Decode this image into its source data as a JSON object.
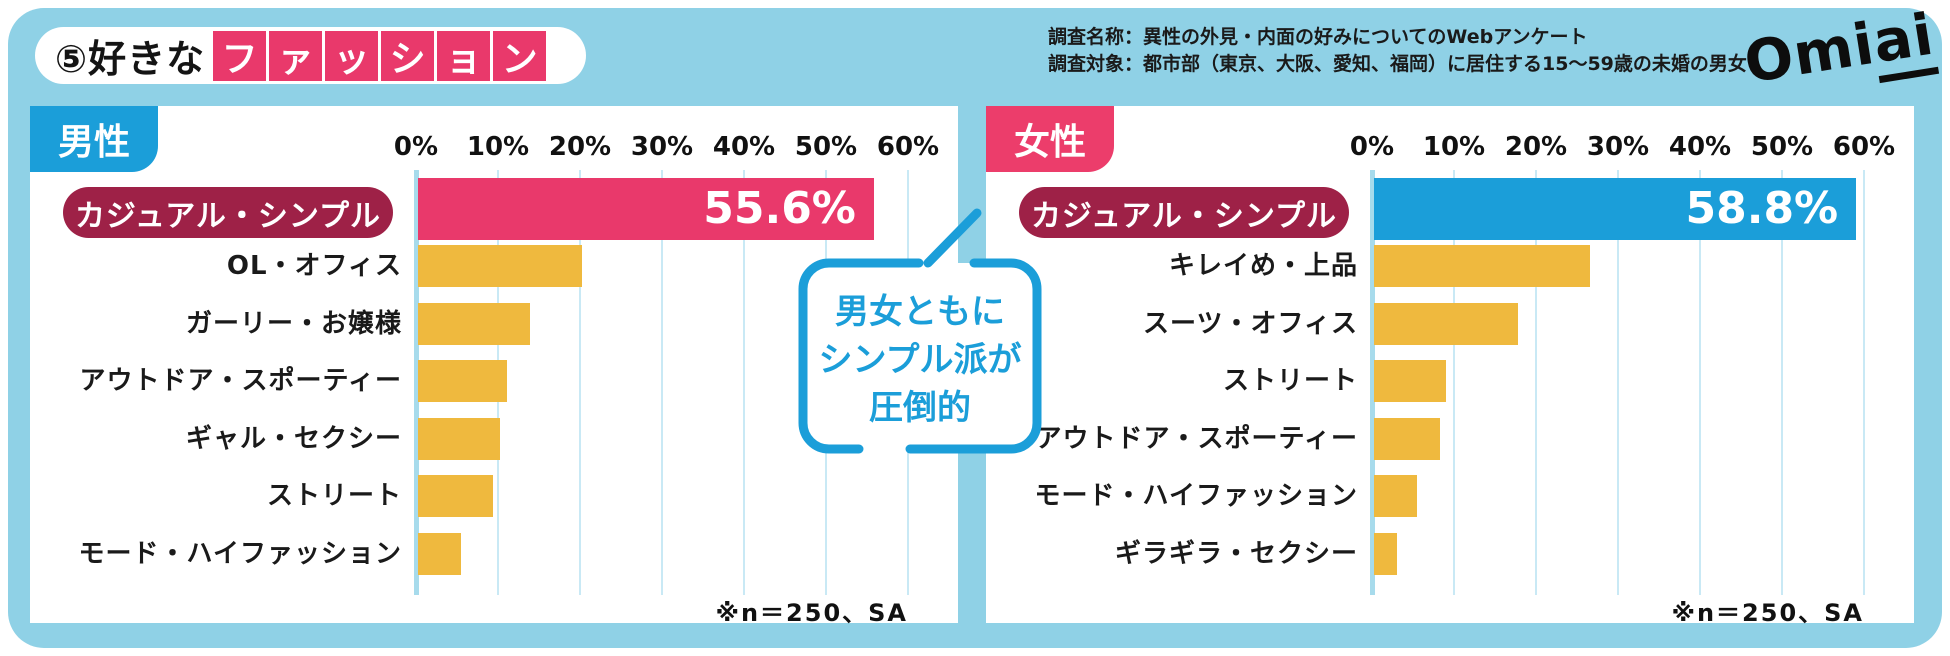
{
  "header": {
    "title_prefix": "⑤好きな",
    "title_boxed_chars": [
      "フ",
      "ァ",
      "ッ",
      "シ",
      "ョ",
      "ン"
    ],
    "survey_line1": "調査名称：異性の外見・内面の好みについてのWebアンケート",
    "survey_line2": "調査対象：都市部（東京、大阪、愛知、福岡）に居住する15～59歳の未婚の男女",
    "logo_main": "Omi",
    "logo_underlined": "ai"
  },
  "bubble": {
    "lines": [
      "男女ともに",
      "シンプル派が",
      "圧倒的"
    ]
  },
  "colors": {
    "background_blue": "#8FD1E6",
    "panel_white": "#FFFFFF",
    "male_blue": "#1B9ED9",
    "female_pink": "#EC3D6B",
    "bar_pink": "#E9396B",
    "bar_blue": "#1B9ED9",
    "bar_yellow": "#EFB93E",
    "label_maroon": "#9E2147",
    "bubble_blue": "#1B9ED9",
    "gridline_blue": "#C9E9F5",
    "zeroline_blue": "#A7DBEC"
  },
  "chart_data": [
    {
      "type": "bar",
      "orientation": "horizontal",
      "group_label": "男性",
      "group_color": "#1B9ED9",
      "highlight_color": "#E9396B",
      "highlight_index": 0,
      "highlight_value_label": "55.6%",
      "categories": [
        "カジュアル・シンプル",
        "OL・オフィス",
        "ガーリー・お嬢様",
        "アウトドア・スポーティー",
        "ギャル・セクシー",
        "ストリート",
        "モード・ハイファッション"
      ],
      "values": [
        55.6,
        20.0,
        13.6,
        10.8,
        10.0,
        9.2,
        5.2
      ],
      "xticks": [
        "0%",
        "10%",
        "20%",
        "30%",
        "40%",
        "50%",
        "60%"
      ],
      "xlim": [
        0,
        60
      ],
      "grid": true,
      "note": "※n＝250、SA"
    },
    {
      "type": "bar",
      "orientation": "horizontal",
      "group_label": "女性",
      "group_color": "#EC3D6B",
      "highlight_color": "#1B9ED9",
      "highlight_index": 0,
      "highlight_value_label": "58.8%",
      "categories": [
        "カジュアル・シンプル",
        "キレイめ・上品",
        "スーツ・オフィス",
        "ストリート",
        "アウトドア・スポーティー",
        "モード・ハイファッション",
        "ギラギラ・セクシー"
      ],
      "values": [
        58.8,
        26.4,
        17.6,
        8.8,
        8.0,
        5.2,
        2.8
      ],
      "xticks": [
        "0%",
        "10%",
        "20%",
        "30%",
        "40%",
        "50%",
        "60%"
      ],
      "xlim": [
        0,
        60
      ],
      "grid": true,
      "note": "※n＝250、SA"
    }
  ]
}
